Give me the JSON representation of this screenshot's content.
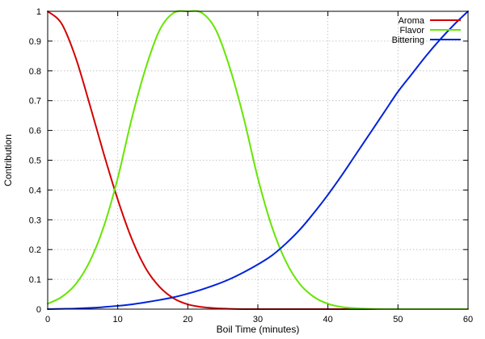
{
  "chart_data": {
    "type": "line",
    "title": "",
    "xlabel": "Boil Time (minutes)",
    "ylabel": "Contribution",
    "xlim": [
      0,
      60
    ],
    "ylim": [
      0,
      1
    ],
    "xticks": [
      0,
      10,
      20,
      30,
      40,
      50,
      60
    ],
    "yticks": [
      0,
      0.1,
      0.2,
      0.3,
      0.4,
      0.5,
      0.6,
      0.7,
      0.8,
      0.9,
      1
    ],
    "grid": true,
    "legend_position": "top-right",
    "x": [
      0,
      2,
      4,
      6,
      8,
      10,
      12,
      14,
      16,
      18,
      20,
      22,
      24,
      26,
      28,
      30,
      32,
      34,
      36,
      38,
      40,
      42,
      44,
      46,
      48,
      50,
      52,
      54,
      56,
      58,
      60
    ],
    "series": [
      {
        "name": "Aroma",
        "color": "#d40000",
        "values": [
          1.0,
          0.958,
          0.844,
          0.687,
          0.522,
          0.368,
          0.236,
          0.137,
          0.074,
          0.036,
          0.016,
          0.007,
          0.003,
          0.001,
          0.0,
          0.0,
          0.0,
          0.0,
          0.0,
          0.0,
          0.0,
          0.0,
          0.0,
          0.0,
          0.0,
          0.0,
          0.0,
          0.0,
          0.0,
          0.0,
          0.0
        ]
      },
      {
        "name": "Flavor",
        "color": "#66e600",
        "values": [
          0.018,
          0.041,
          0.084,
          0.16,
          0.277,
          0.44,
          0.64,
          0.81,
          0.938,
          0.995,
          1.0,
          0.995,
          0.938,
          0.81,
          0.64,
          0.44,
          0.277,
          0.16,
          0.084,
          0.041,
          0.018,
          0.007,
          0.003,
          0.001,
          0.0,
          0.0,
          0.0,
          0.0,
          0.0,
          0.0,
          0.0
        ]
      },
      {
        "name": "Bittering",
        "color": "#0022dd",
        "values": [
          0.0,
          0.001,
          0.002,
          0.004,
          0.007,
          0.011,
          0.016,
          0.023,
          0.031,
          0.04,
          0.052,
          0.066,
          0.082,
          0.101,
          0.124,
          0.15,
          0.18,
          0.22,
          0.267,
          0.323,
          0.384,
          0.45,
          0.52,
          0.59,
          0.66,
          0.73,
          0.79,
          0.85,
          0.905,
          0.955,
          1.0
        ]
      }
    ]
  }
}
